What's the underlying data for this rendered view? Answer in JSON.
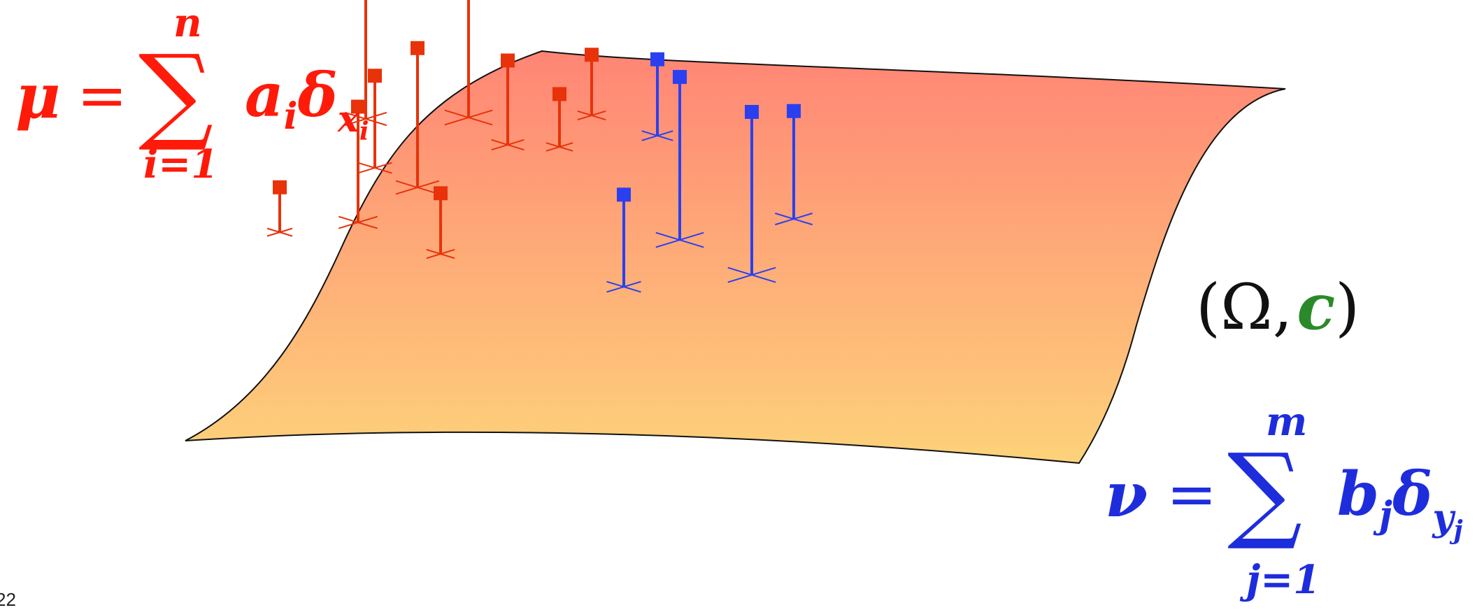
{
  "formulas": {
    "mu": {
      "lhs": "μ",
      "equals": "=",
      "sum": "∑",
      "upper": "n",
      "lower": "i=1",
      "term_coeff": "a",
      "term_coeff_sub": "i",
      "term_delta": "δ",
      "term_delta_sub": "x",
      "term_delta_subsub": "i"
    },
    "nu": {
      "lhs": "ν",
      "equals": "=",
      "sum": "∑",
      "upper": "m",
      "lower": "j=1",
      "term_coeff": "b",
      "term_coeff_sub": "j",
      "term_delta": "δ",
      "term_delta_sub": "y",
      "term_delta_subsub": "j"
    },
    "space": {
      "open": "(Ω,",
      "cost": "c",
      "close": ")"
    }
  },
  "page_number": "22",
  "colors": {
    "red": "#ff1a0a",
    "red_stem": "#e8320a",
    "blue": "#1e2ddc",
    "blue_stem": "#2a40f0",
    "green": "#2a8a2a",
    "surface_top": "#ff8575",
    "surface_bottom": "#fdd27a",
    "outline": "#111111"
  },
  "measures": {
    "mu_red": [
      {
        "id": "x1",
        "weight": 0.8
      },
      {
        "id": "x2",
        "weight": 0.55
      },
      {
        "id": "x3",
        "weight": 0.85
      },
      {
        "id": "x4",
        "weight": 1.0
      },
      {
        "id": "x5",
        "weight": 0.5
      },
      {
        "id": "x6",
        "weight": 0.35
      },
      {
        "id": "x7",
        "weight": 0.7
      },
      {
        "id": "x8",
        "weight": 0.25
      },
      {
        "id": "x9",
        "weight": 0.35
      },
      {
        "id": "x10",
        "weight": 0.3
      }
    ],
    "nu_blue": [
      {
        "id": "y1",
        "weight": 0.45
      },
      {
        "id": "y2",
        "weight": 1.0
      },
      {
        "id": "y3",
        "weight": 0.55
      },
      {
        "id": "y4",
        "weight": 1.0
      },
      {
        "id": "y5",
        "weight": 0.65
      }
    ]
  }
}
